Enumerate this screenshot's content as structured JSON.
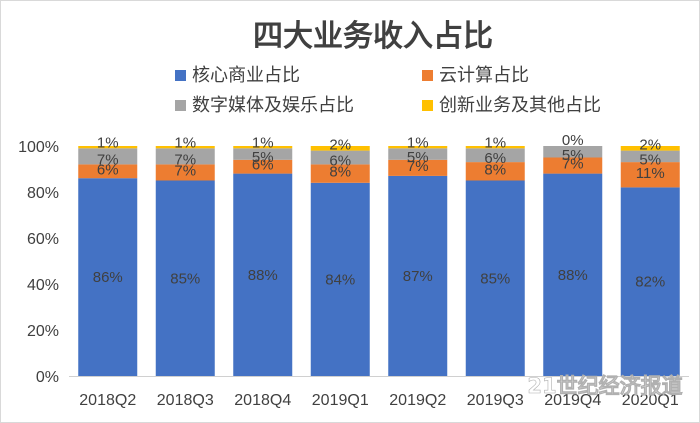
{
  "watermark": "21世纪经济报道",
  "chart_data": {
    "type": "bar",
    "stacked": true,
    "title": "四大业务收入占比",
    "categories": [
      "2018Q2",
      "2018Q3",
      "2018Q4",
      "2019Q1",
      "2019Q2",
      "2019Q3",
      "2019Q4",
      "2020Q1"
    ],
    "ylim": [
      0,
      100
    ],
    "yticks": [
      "0%",
      "20%",
      "40%",
      "60%",
      "80%",
      "100%"
    ],
    "legend_position": "top",
    "grid": false,
    "series": [
      {
        "name": "核心商业占比",
        "color": "#4472c4",
        "values": [
          86,
          85,
          88,
          84,
          87,
          85,
          88,
          82
        ],
        "labels": [
          "86%",
          "85%",
          "88%",
          "84%",
          "87%",
          "85%",
          "88%",
          "82%"
        ]
      },
      {
        "name": "云计算占比",
        "color": "#ed7d31",
        "values": [
          6,
          7,
          6,
          8,
          7,
          8,
          7,
          11
        ],
        "labels": [
          "6%",
          "7%",
          "6%",
          "8%",
          "7%",
          "8%",
          "7%",
          "11%"
        ]
      },
      {
        "name": "数字媒体及娱乐占比",
        "color": "#a5a5a5",
        "values": [
          7,
          7,
          5,
          6,
          5,
          6,
          5,
          5
        ],
        "labels": [
          "7%",
          "7%",
          "5%",
          "6%",
          "5%",
          "6%",
          "5%",
          "5%"
        ]
      },
      {
        "name": "创新业务及其他占比",
        "color": "#ffc000",
        "values": [
          1,
          1,
          1,
          2,
          1,
          1,
          0,
          2
        ],
        "labels": [
          "1%",
          "1%",
          "1%",
          "2%",
          "1%",
          "1%",
          "0%",
          "2%"
        ]
      }
    ]
  }
}
